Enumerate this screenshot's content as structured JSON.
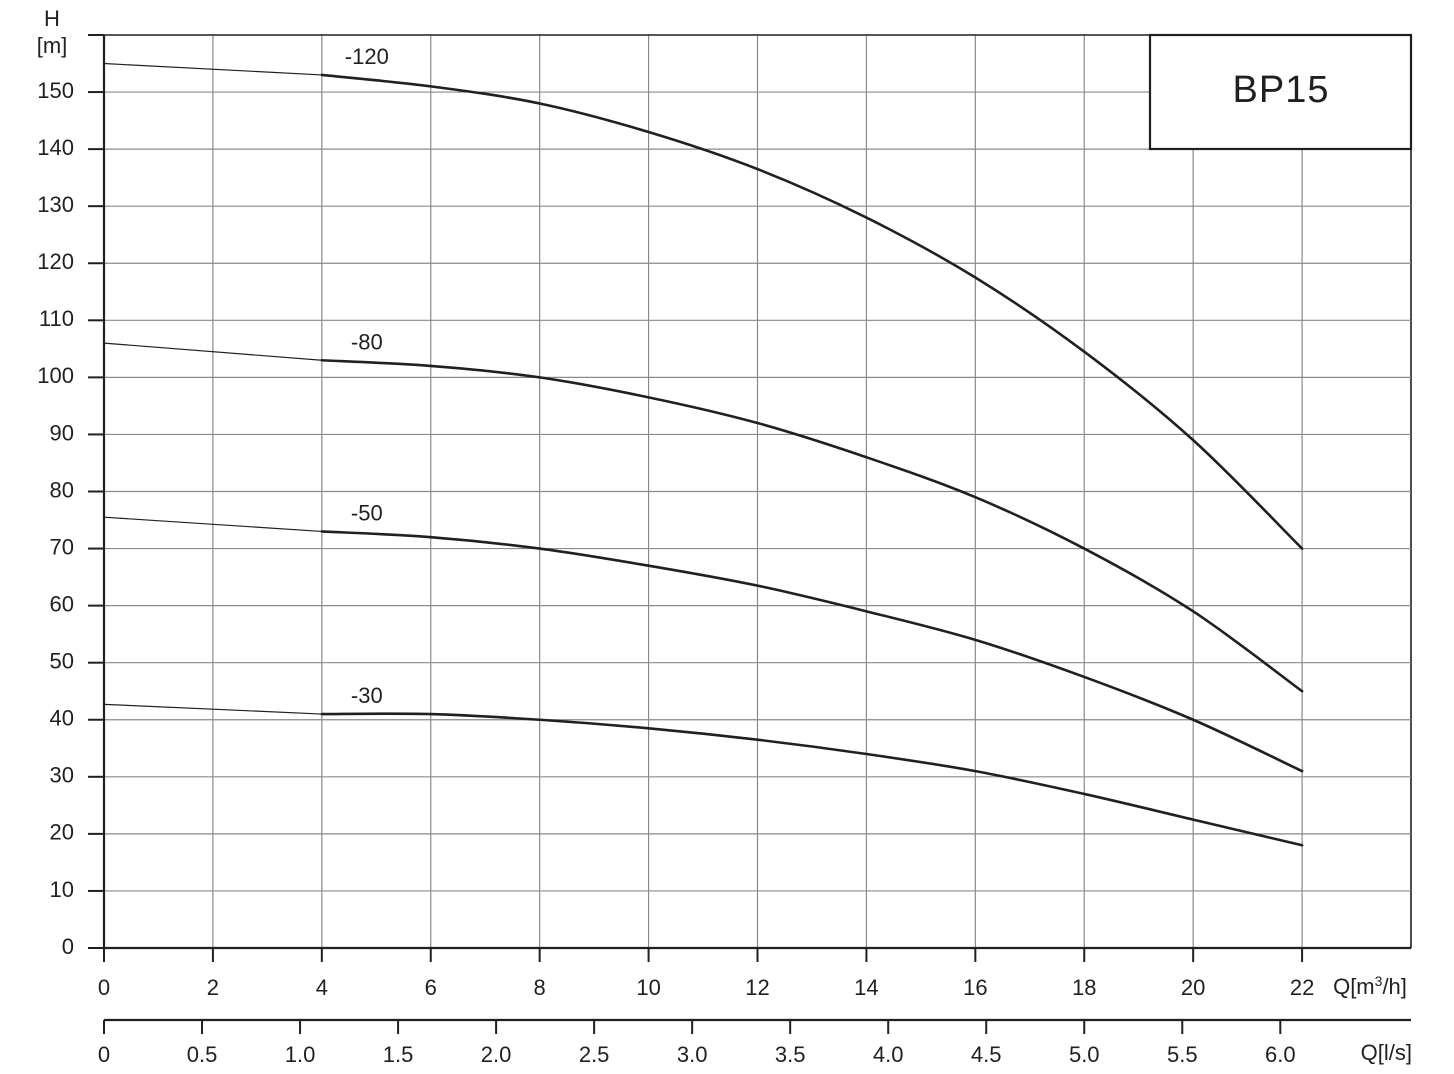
{
  "chart_data": {
    "type": "line",
    "title": "BP15",
    "y_axis": {
      "label_line1": "H",
      "label_line2": "[m]",
      "ylim": [
        0,
        160
      ],
      "ticks": [
        0,
        10,
        20,
        30,
        40,
        50,
        60,
        70,
        80,
        90,
        100,
        110,
        120,
        130,
        140,
        150
      ]
    },
    "x_axis_primary": {
      "label": "Q[m³/h]",
      "xlim": [
        0,
        24
      ],
      "ticks": [
        0,
        2,
        4,
        6,
        8,
        10,
        12,
        14,
        16,
        18,
        20,
        22
      ]
    },
    "x_axis_secondary": {
      "label": "Q[l/s]",
      "ticks": [
        "0",
        "0.5",
        "1.0",
        "1.5",
        "2.0",
        "2.5",
        "3.0",
        "3.5",
        "4.0",
        "4.5",
        "5.0",
        "5.5",
        "6.0"
      ]
    },
    "grid": true,
    "series": [
      {
        "name": "-120",
        "x": [
          0,
          4,
          6,
          8,
          10,
          12,
          14,
          16,
          18,
          20,
          22
        ],
        "y": [
          155,
          153,
          151,
          148,
          143,
          136.5,
          128,
          117.5,
          104.5,
          89,
          70
        ]
      },
      {
        "name": "-80",
        "x": [
          0,
          4,
          6,
          8,
          10,
          12,
          14,
          16,
          18,
          20,
          22
        ],
        "y": [
          106,
          103,
          102,
          100,
          96.5,
          92,
          86,
          79,
          70,
          59,
          45
        ]
      },
      {
        "name": "-50",
        "x": [
          0,
          4,
          6,
          8,
          10,
          12,
          14,
          16,
          18,
          20,
          22
        ],
        "y": [
          75.5,
          73,
          72,
          70,
          67,
          63.5,
          59,
          54,
          47.5,
          40,
          31
        ]
      },
      {
        "name": "-30",
        "x": [
          0,
          4,
          6,
          8,
          10,
          12,
          14,
          16,
          18,
          20,
          22
        ],
        "y": [
          42.7,
          41,
          41,
          40,
          38.5,
          36.5,
          34,
          31,
          27,
          22.5,
          18
        ]
      }
    ]
  }
}
